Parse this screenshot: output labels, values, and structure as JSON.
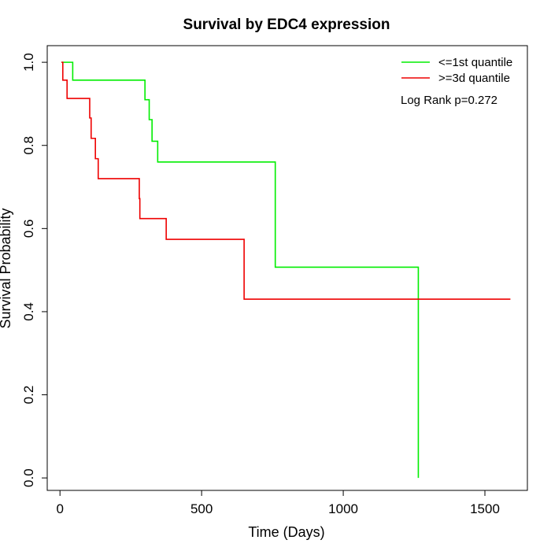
{
  "chart_data": {
    "type": "line",
    "title": "Survival by EDC4 expression",
    "xlabel": "Time (Days)",
    "ylabel": "Survival Probability",
    "xlim": [
      -45,
      1650
    ],
    "ylim": [
      -0.03,
      1.04
    ],
    "xticks": [
      0,
      500,
      1000,
      1500
    ],
    "yticks": [
      0.0,
      0.2,
      0.4,
      0.6,
      0.8,
      1.0
    ],
    "xtick_labels": [
      "0",
      "500",
      "1000",
      "1500"
    ],
    "ytick_labels": [
      "0.0",
      "0.2",
      "0.4",
      "0.6",
      "0.8",
      "1.0"
    ],
    "grid": false,
    "legend_position": "top-right",
    "annotation": "Log Rank p=0.272",
    "series": [
      {
        "name": "<=1st quantile",
        "color": "#00ee00",
        "step": true,
        "x": [
          5,
          45,
          300,
          315,
          325,
          345,
          760,
          1265,
          1265
        ],
        "y": [
          1.0,
          0.957,
          0.91,
          0.862,
          0.81,
          0.76,
          0.507,
          0.507,
          0.0
        ]
      },
      {
        "name": ">=3d quantile",
        "color": "#ee0000",
        "step": true,
        "x": [
          5,
          10,
          25,
          105,
          110,
          125,
          135,
          140,
          280,
          282,
          285,
          375,
          650,
          1590
        ],
        "y": [
          1.0,
          0.957,
          0.913,
          0.866,
          0.817,
          0.768,
          0.72,
          0.72,
          0.672,
          0.624,
          0.624,
          0.574,
          0.43,
          0.43
        ]
      }
    ]
  }
}
